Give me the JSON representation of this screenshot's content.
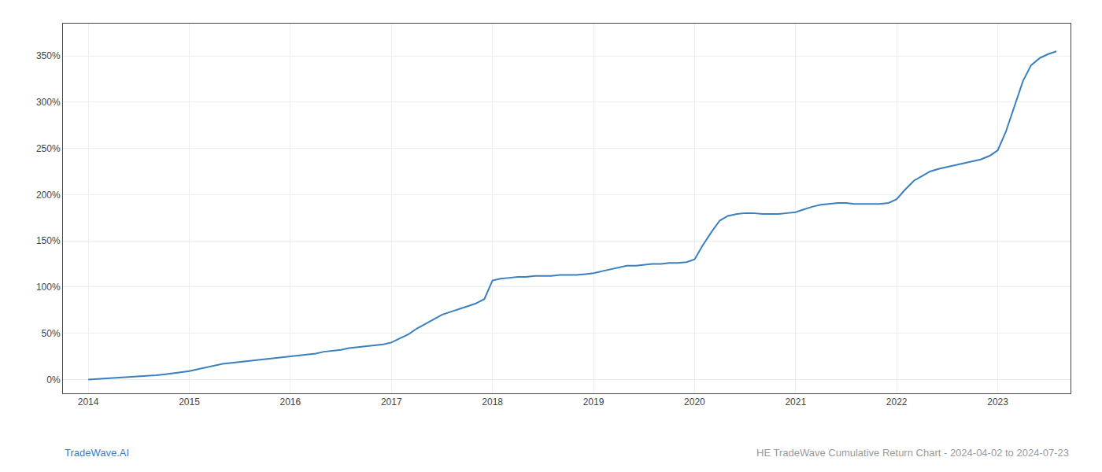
{
  "chart_data": {
    "type": "line",
    "color": "#3a80bf",
    "grid": true,
    "x": [
      2014.0,
      2014.08,
      2014.17,
      2014.25,
      2014.33,
      2014.42,
      2014.5,
      2014.58,
      2014.67,
      2014.75,
      2014.83,
      2014.92,
      2015.0,
      2015.08,
      2015.17,
      2015.25,
      2015.33,
      2015.42,
      2015.5,
      2015.58,
      2015.67,
      2015.75,
      2015.83,
      2015.92,
      2016.0,
      2016.08,
      2016.17,
      2016.25,
      2016.33,
      2016.42,
      2016.5,
      2016.58,
      2016.67,
      2016.75,
      2016.83,
      2016.92,
      2017.0,
      2017.08,
      2017.17,
      2017.25,
      2017.33,
      2017.42,
      2017.5,
      2017.58,
      2017.67,
      2017.75,
      2017.83,
      2017.92,
      2018.0,
      2018.08,
      2018.17,
      2018.25,
      2018.33,
      2018.42,
      2018.5,
      2018.58,
      2018.67,
      2018.75,
      2018.83,
      2018.92,
      2019.0,
      2019.08,
      2019.17,
      2019.25,
      2019.33,
      2019.42,
      2019.5,
      2019.58,
      2019.67,
      2019.75,
      2019.83,
      2019.92,
      2020.0,
      2020.08,
      2020.17,
      2020.25,
      2020.33,
      2020.42,
      2020.5,
      2020.58,
      2020.67,
      2020.75,
      2020.83,
      2020.92,
      2021.0,
      2021.08,
      2021.17,
      2021.25,
      2021.33,
      2021.42,
      2021.5,
      2021.58,
      2021.67,
      2021.75,
      2021.83,
      2021.92,
      2022.0,
      2022.08,
      2022.17,
      2022.25,
      2022.33,
      2022.42,
      2022.5,
      2022.58,
      2022.67,
      2022.75,
      2022.83,
      2022.92,
      2023.0,
      2023.08,
      2023.17,
      2023.25,
      2023.33,
      2023.42,
      2023.5,
      2023.58
    ],
    "values": [
      0,
      0.5,
      1.0,
      1.5,
      2.0,
      2.5,
      3.0,
      3.5,
      4.5,
      5.5,
      6.5,
      7.5,
      9,
      11,
      13,
      15,
      17,
      18,
      19,
      20,
      21,
      22,
      23,
      24,
      25,
      26,
      27,
      28,
      30,
      31,
      32,
      34,
      35,
      36,
      37,
      38,
      40,
      44,
      49,
      55,
      60,
      65,
      70,
      73,
      76,
      79,
      82,
      87,
      107,
      109,
      110,
      111,
      111,
      112,
      112,
      112,
      113,
      113,
      113,
      114,
      115,
      117,
      119,
      121,
      123,
      123,
      124,
      125,
      125,
      126,
      126,
      127,
      130,
      145,
      160,
      172,
      177,
      179,
      180,
      180,
      179,
      179,
      179,
      180,
      181,
      184,
      187,
      189,
      190,
      191,
      191,
      190,
      190,
      190,
      190,
      191,
      195,
      205,
      215,
      220,
      225,
      228,
      230,
      232,
      234,
      236,
      238,
      242,
      248,
      268,
      298,
      323,
      340,
      348,
      352,
      355
    ],
    "xlim": [
      2013.75,
      2023.72
    ],
    "xticks": [
      2014,
      2015,
      2016,
      2017,
      2018,
      2019,
      2020,
      2021,
      2022,
      2023
    ],
    "ylim": [
      -15,
      385
    ],
    "yticks": [
      {
        "value": 0,
        "label": "0%"
      },
      {
        "value": 50,
        "label": "50%"
      },
      {
        "value": 100,
        "label": "100%"
      },
      {
        "value": 150,
        "label": "150%"
      },
      {
        "value": 200,
        "label": "200%"
      },
      {
        "value": 250,
        "label": "250%"
      },
      {
        "value": 300,
        "label": "300%"
      },
      {
        "value": 350,
        "label": "350%"
      }
    ],
    "annotations": [
      {
        "text": "TradeWave.AI",
        "color": "#3a80bf"
      },
      {
        "text": "HE TradeWave Cumulative Return Chart - 2024-04-02 to 2024-07-23",
        "color": "#999999"
      }
    ]
  }
}
